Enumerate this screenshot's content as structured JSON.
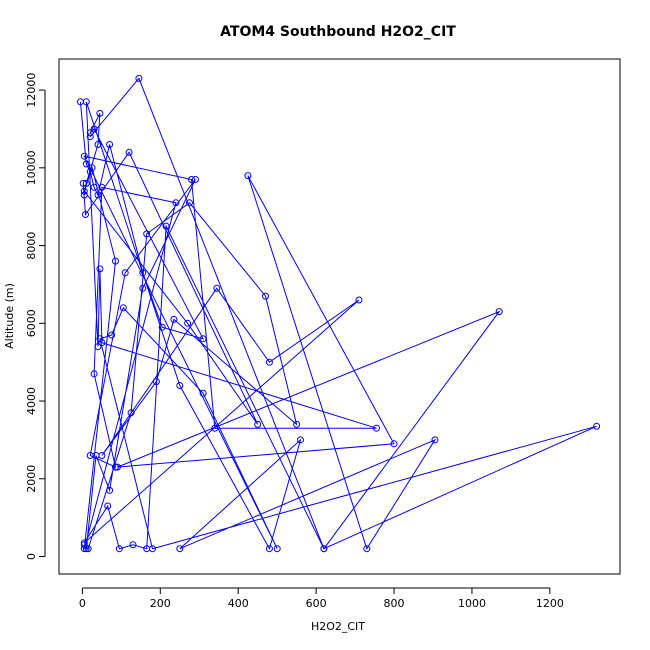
{
  "chart_data": {
    "type": "line",
    "title": "ATOM4 Southbound H2O2_CIT",
    "xlabel": "H2O2_CIT",
    "ylabel": "Altitude (m)",
    "xlim": [
      -60,
      1380
    ],
    "ylim": [
      -450,
      12800
    ],
    "xticks": [
      0,
      200,
      400,
      600,
      800,
      1000,
      1200
    ],
    "yticks": [
      0,
      2000,
      4000,
      6000,
      8000,
      10000,
      12000
    ],
    "grid": false,
    "legend": "none",
    "series": [
      {
        "color": "#0000ff",
        "marker": "open-circle",
        "x": [
          -5,
          10,
          20,
          30,
          40,
          70,
          155,
          205,
          310,
          30,
          20,
          45,
          40,
          10,
          5,
          2,
          8,
          120,
          450,
          270,
          5,
          25,
          85,
          5,
          240,
          50,
          30,
          85,
          20,
          110,
          290,
          155,
          70,
          35,
          10,
          5,
          15,
          125,
          165,
          275,
          470,
          550,
          235,
          190,
          50,
          345,
          480,
          710,
          5,
          65,
          95,
          130,
          165,
          215,
          620,
          1320,
          180,
          45,
          75,
          105,
          310,
          500,
          5,
          280,
          340,
          755,
          50,
          45,
          40,
          10,
          250,
          480,
          560,
          250,
          905,
          730,
          425,
          800,
          90,
          1070,
          620,
          145,
          20
        ],
        "y": [
          11700,
          10100,
          9900,
          9500,
          9300,
          10600,
          7300,
          5900,
          5600,
          11000,
          10900,
          11400,
          10600,
          9600,
          9300,
          9600,
          8800,
          10400,
          3400,
          6000,
          9400,
          10000,
          7600,
          200,
          9100,
          9500,
          4700,
          2300,
          2600,
          7300,
          9700,
          6900,
          1700,
          2600,
          200,
          300,
          200,
          3700,
          8300,
          9100,
          6700,
          3400,
          6100,
          4500,
          2600,
          6900,
          5000,
          6600,
          350,
          1300,
          200,
          300,
          200,
          8500,
          200,
          3350,
          200,
          5600,
          5700,
          6400,
          4200,
          200,
          10300,
          9700,
          3300,
          3300,
          5500,
          7400,
          5400,
          11700,
          4400,
          200,
          3000,
          200,
          3000,
          200,
          9800,
          2900,
          2300,
          6300,
          200,
          12300,
          10800
        ]
      }
    ]
  }
}
